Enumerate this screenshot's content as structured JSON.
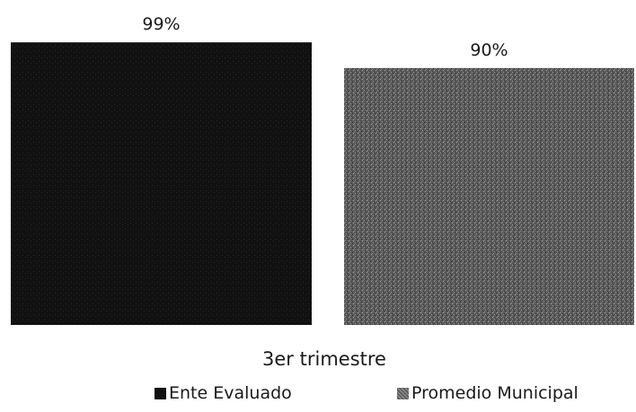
{
  "chart_data": {
    "type": "bar",
    "categories": [
      "3er trimestre"
    ],
    "series": [
      {
        "name": "Ente Evaluado",
        "values": [
          99
        ],
        "label": "99%",
        "color": "#111111"
      },
      {
        "name": "Promedio Municipal",
        "values": [
          90
        ],
        "label": "90%",
        "color": "#5e5e5e"
      }
    ],
    "ylim": [
      0,
      100
    ],
    "grid": false,
    "legend_position": "bottom"
  }
}
